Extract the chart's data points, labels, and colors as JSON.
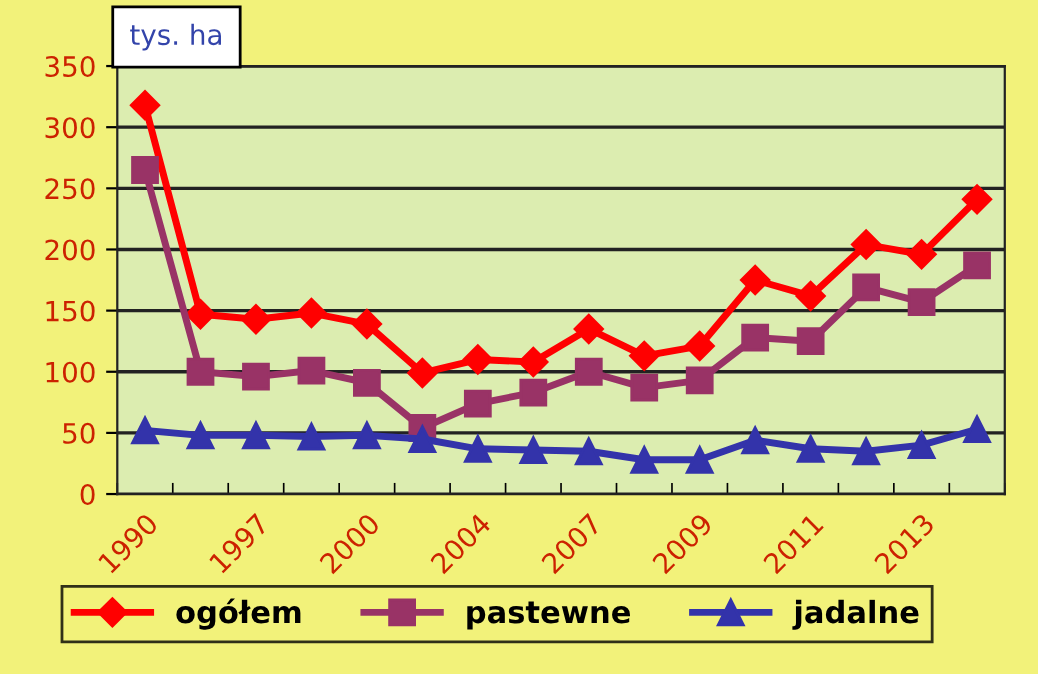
{
  "chart_data": {
    "type": "line",
    "ylabel": "tys. ha",
    "categories": [
      "1990",
      null,
      "1997",
      null,
      "2000",
      null,
      "2004",
      null,
      "2007",
      null,
      "2009",
      null,
      "2011",
      null,
      "2013",
      null
    ],
    "series": [
      {
        "name": "ogółem",
        "color": "#ff0000",
        "marker": "diamond",
        "values": [
          318,
          147,
          143,
          148,
          139,
          99,
          110,
          108,
          135,
          113,
          121,
          175,
          162,
          204,
          196,
          241
        ]
      },
      {
        "name": "pastewne",
        "color": "#993366",
        "marker": "square",
        "values": [
          265,
          100,
          96,
          101,
          91,
          54,
          74,
          83,
          100,
          87,
          93,
          128,
          125,
          169,
          157,
          187
        ]
      },
      {
        "name": "jadalne",
        "color": "#3333aa",
        "marker": "triangle",
        "values": [
          52,
          48,
          48,
          47,
          48,
          45,
          37,
          36,
          35,
          28,
          28,
          44,
          37,
          35,
          40,
          53
        ]
      }
    ],
    "ylim": [
      0,
      350
    ],
    "yticks": [
      0,
      50,
      100,
      150,
      200,
      250,
      300,
      350
    ],
    "grid": "y",
    "legend": "bottom",
    "line_style": "solid"
  }
}
